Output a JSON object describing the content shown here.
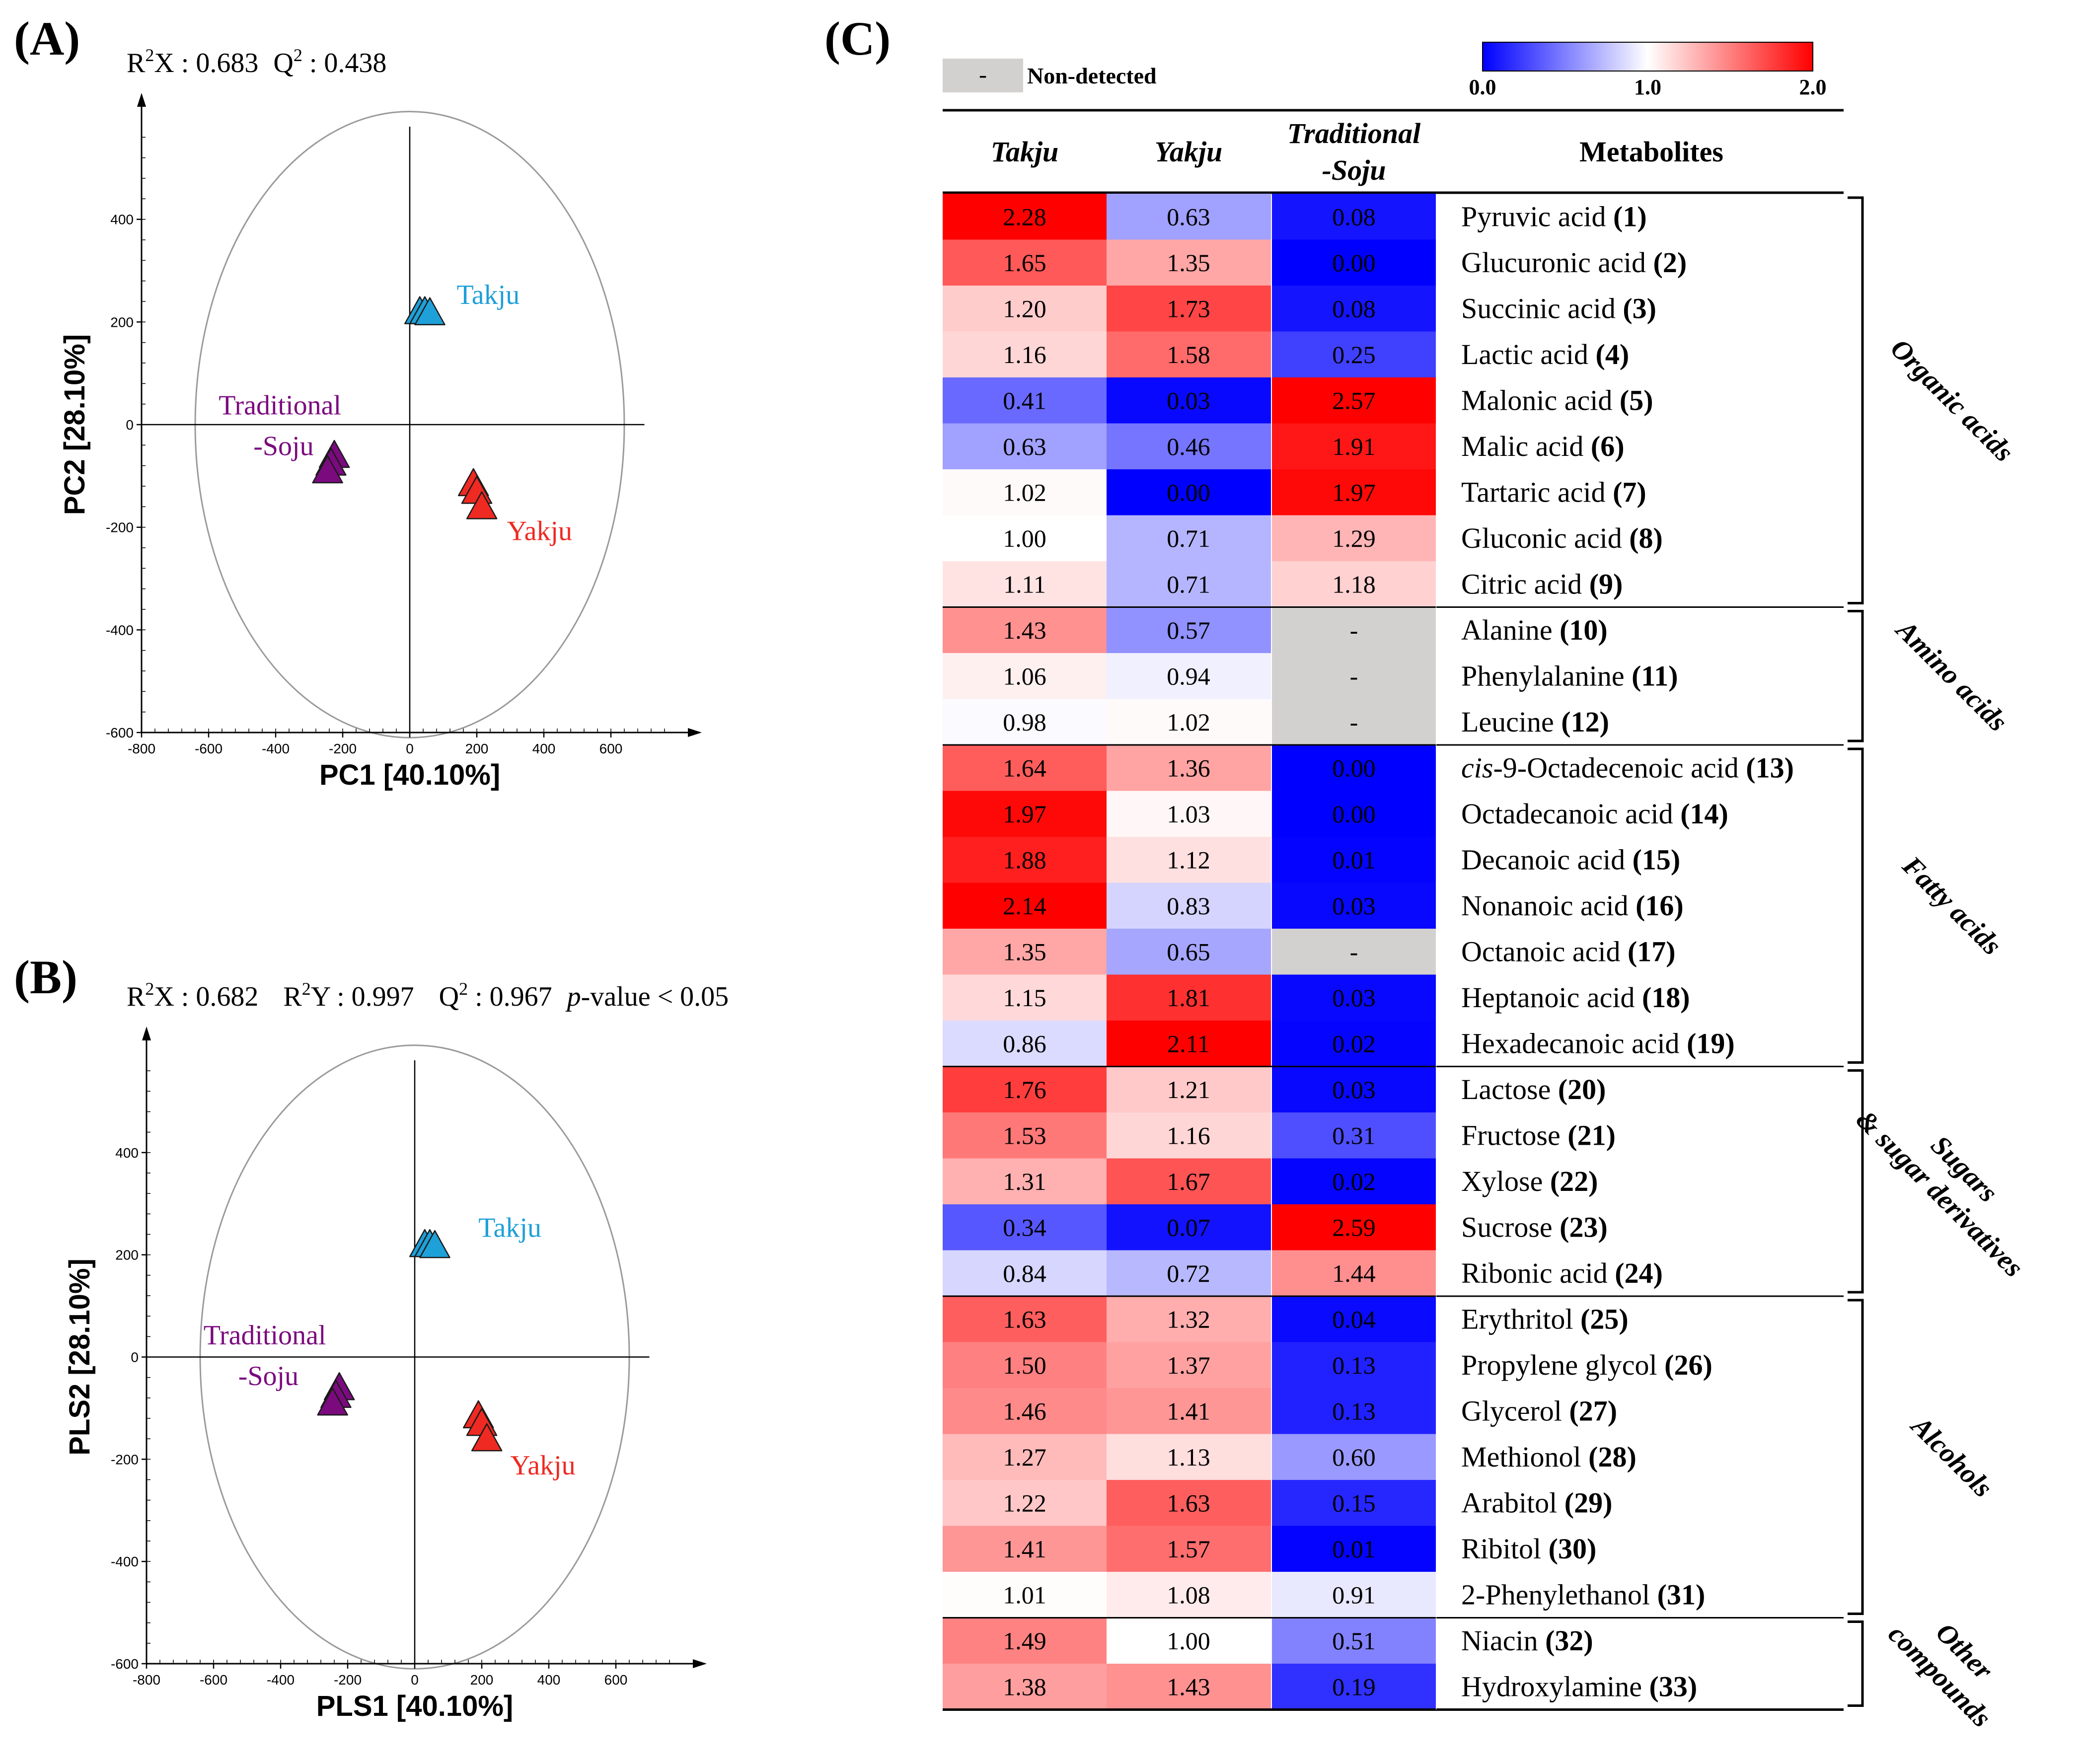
{
  "panel_labels": {
    "a": "(A)",
    "b": "(B)",
    "c": "(C)"
  },
  "colors": {
    "takju": "#1ea0d8",
    "yakju": "#ee2a22",
    "soju": "#7a0a7e",
    "heat_low": "#0000ff",
    "heat_mid": "#ffffff",
    "heat_high": "#ff0000",
    "nd": "#d3d0d0"
  },
  "stats": {
    "a": {
      "r2x": "0.683",
      "q2": "0.438"
    },
    "b": {
      "r2x": "0.682",
      "r2y": "0.997",
      "q2": "0.967",
      "pval": "< 0.05"
    }
  },
  "chart_data": [
    {
      "id": "pca",
      "type": "scatter",
      "xlabel": "PC1 [40.10%]",
      "ylabel": "PC2 [28.10%]",
      "xlim": [
        -800,
        800
      ],
      "ylim": [
        -600,
        600
      ],
      "xticks": [
        -800,
        -600,
        -400,
        -200,
        0,
        200,
        400,
        600
      ],
      "yticks": [
        -600,
        -400,
        -200,
        0,
        200,
        400
      ],
      "ellipse": {
        "cx": 0,
        "cy": 0,
        "rx": 640,
        "ry": 610
      },
      "series": [
        {
          "name": "Takju",
          "label": "Takju",
          "color_key": "takju",
          "points": [
            [
              30,
              220
            ],
            [
              45,
              220
            ],
            [
              60,
              218
            ]
          ],
          "label_at": [
            140,
            235
          ]
        },
        {
          "name": "Yakju",
          "label": "Yakju",
          "color_key": "yakju",
          "points": [
            [
              190,
              -115
            ],
            [
              200,
              -130
            ],
            [
              215,
              -160
            ]
          ],
          "label_at": [
            290,
            -225
          ]
        },
        {
          "name": "Traditional-Soju",
          "label1": "Traditional",
          "label2": "-Soju",
          "color_key": "soju",
          "points": [
            [
              -225,
              -60
            ],
            [
              -235,
              -75
            ],
            [
              -245,
              -90
            ]
          ],
          "label_at": [
            -570,
            20
          ]
        }
      ]
    },
    {
      "id": "pls",
      "type": "scatter",
      "xlabel": "PLS1 [40.10%]",
      "ylabel": "PLS2 [28.10%]",
      "xlim": [
        -800,
        800
      ],
      "ylim": [
        -600,
        600
      ],
      "xticks": [
        -800,
        -600,
        -400,
        -200,
        0,
        200,
        400,
        600
      ],
      "yticks": [
        -600,
        -400,
        -200,
        0,
        200,
        400
      ],
      "ellipse": {
        "cx": 0,
        "cy": 0,
        "rx": 640,
        "ry": 610
      },
      "series": [
        {
          "name": "Takju",
          "label": "Takju",
          "color_key": "takju",
          "points": [
            [
              30,
              220
            ],
            [
              45,
              220
            ],
            [
              60,
              218
            ]
          ],
          "label_at": [
            190,
            235
          ]
        },
        {
          "name": "Yakju",
          "label": "Yakju",
          "color_key": "yakju",
          "points": [
            [
              190,
              -115
            ],
            [
              200,
              -130
            ],
            [
              215,
              -160
            ]
          ],
          "label_at": [
            285,
            -230
          ]
        },
        {
          "name": "Traditional-Soju",
          "label1": "Traditional",
          "label2": "-Soju",
          "color_key": "soju",
          "points": [
            [
              -225,
              -60
            ],
            [
              -235,
              -75
            ],
            [
              -245,
              -90
            ]
          ],
          "label_at": [
            -630,
            25
          ]
        }
      ]
    },
    {
      "id": "heatmap",
      "type": "heatmap",
      "colorbar": {
        "min": 0.0,
        "mid": 1.0,
        "max": 2.0,
        "labels": [
          "0.0",
          "1.0",
          "2.0"
        ]
      },
      "nd_marker": "-",
      "nd_label": "Non-detected",
      "columns": [
        {
          "line1": "Takju",
          "line2": ""
        },
        {
          "line1": "Yakju",
          "line2": ""
        },
        {
          "line1": "Traditional",
          "line2": "-Soju"
        }
      ],
      "metabolite_header": "Metabolites",
      "rows": [
        {
          "name": "Pyruvic acid",
          "id": "(1)",
          "values": [
            "2.28",
            "0.63",
            "0.08"
          ]
        },
        {
          "name": "Glucuronic acid",
          "id": "(2)",
          "values": [
            "1.65",
            "1.35",
            "0.00"
          ]
        },
        {
          "name": "Succinic acid",
          "id": "(3)",
          "values": [
            "1.20",
            "1.73",
            "0.08"
          ]
        },
        {
          "name": "Lactic acid",
          "id": "(4)",
          "values": [
            "1.16",
            "1.58",
            "0.25"
          ]
        },
        {
          "name": "Malonic acid",
          "id": "(5)",
          "values": [
            "0.41",
            "0.03",
            "2.57"
          ]
        },
        {
          "name": "Malic acid",
          "id": "(6)",
          "values": [
            "0.63",
            "0.46",
            "1.91"
          ]
        },
        {
          "name": "Tartaric acid",
          "id": "(7)",
          "values": [
            "1.02",
            "0.00",
            "1.97"
          ]
        },
        {
          "name": "Gluconic acid",
          "id": "(8)",
          "values": [
            "1.00",
            "0.71",
            "1.29"
          ]
        },
        {
          "name": "Citric acid",
          "id": "(9)",
          "values": [
            "1.11",
            "0.71",
            "1.18"
          ]
        },
        {
          "name": "Alanine",
          "id": "(10)",
          "values": [
            "1.43",
            "0.57",
            "-"
          ]
        },
        {
          "name": "Phenylalanine",
          "id": "(11)",
          "values": [
            "1.06",
            "0.94",
            "-"
          ]
        },
        {
          "name": "Leucine",
          "id": "(12)",
          "values": [
            "0.98",
            "1.02",
            "-"
          ]
        },
        {
          "prefix": "cis",
          "name": "-9-Octadecenoic acid",
          "id": "(13)",
          "values": [
            "1.64",
            "1.36",
            "0.00"
          ]
        },
        {
          "name": "Octadecanoic acid",
          "id": "(14)",
          "values": [
            "1.97",
            "1.03",
            "0.00"
          ]
        },
        {
          "name": "Decanoic acid",
          "id": "(15)",
          "values": [
            "1.88",
            "1.12",
            "0.01"
          ]
        },
        {
          "name": "Nonanoic acid",
          "id": "(16)",
          "values": [
            "2.14",
            "0.83",
            "0.03"
          ]
        },
        {
          "name": "Octanoic acid",
          "id": "(17)",
          "values": [
            "1.35",
            "0.65",
            "-"
          ]
        },
        {
          "name": "Heptanoic acid",
          "id": "(18)",
          "values": [
            "1.15",
            "1.81",
            "0.03"
          ]
        },
        {
          "name": "Hexadecanoic acid",
          "id": "(19)",
          "values": [
            "0.86",
            "2.11",
            "0.02"
          ]
        },
        {
          "name": "Lactose",
          "id": "(20)",
          "values": [
            "1.76",
            "1.21",
            "0.03"
          ]
        },
        {
          "name": "Fructose",
          "id": "(21)",
          "values": [
            "1.53",
            "1.16",
            "0.31"
          ]
        },
        {
          "name": "Xylose",
          "id": "(22)",
          "values": [
            "1.31",
            "1.67",
            "0.02"
          ]
        },
        {
          "name": "Sucrose",
          "id": "(23)",
          "values": [
            "0.34",
            "0.07",
            "2.59"
          ]
        },
        {
          "name": "Ribonic acid",
          "id": "(24)",
          "values": [
            "0.84",
            "0.72",
            "1.44"
          ]
        },
        {
          "name": "Erythritol",
          "id": "(25)",
          "values": [
            "1.63",
            "1.32",
            "0.04"
          ]
        },
        {
          "name": "Propylene glycol",
          "id": "(26)",
          "values": [
            "1.50",
            "1.37",
            "0.13"
          ]
        },
        {
          "name": "Glycerol",
          "id": "(27)",
          "values": [
            "1.46",
            "1.41",
            "0.13"
          ]
        },
        {
          "name": "Methionol",
          "id": "(28)",
          "values": [
            "1.27",
            "1.13",
            "0.60"
          ]
        },
        {
          "name": "Arabitol",
          "id": "(29)",
          "values": [
            "1.22",
            "1.63",
            "0.15"
          ]
        },
        {
          "name": "Ribitol",
          "id": "(30)",
          "values": [
            "1.41",
            "1.57",
            "0.01"
          ]
        },
        {
          "name": "2-Phenylethanol",
          "id": "(31)",
          "values": [
            "1.01",
            "1.08",
            "0.91"
          ]
        },
        {
          "name": "Niacin",
          "id": "(32)",
          "values": [
            "1.49",
            "1.00",
            "0.51"
          ]
        },
        {
          "name": "Hydroxylamine",
          "id": "(33)",
          "values": [
            "1.38",
            "1.43",
            "0.19"
          ]
        }
      ],
      "groups": [
        {
          "lines": [
            "Organic acids"
          ],
          "start": 0,
          "end": 8
        },
        {
          "lines": [
            "Amino acids"
          ],
          "start": 9,
          "end": 11
        },
        {
          "lines": [
            "Fatty acids"
          ],
          "start": 12,
          "end": 18
        },
        {
          "lines": [
            "Sugars",
            "& sugar derivatives"
          ],
          "start": 19,
          "end": 23
        },
        {
          "lines": [
            "Alcohols"
          ],
          "start": 24,
          "end": 30
        },
        {
          "lines": [
            "Other",
            "compounds"
          ],
          "start": 31,
          "end": 32
        }
      ]
    }
  ]
}
